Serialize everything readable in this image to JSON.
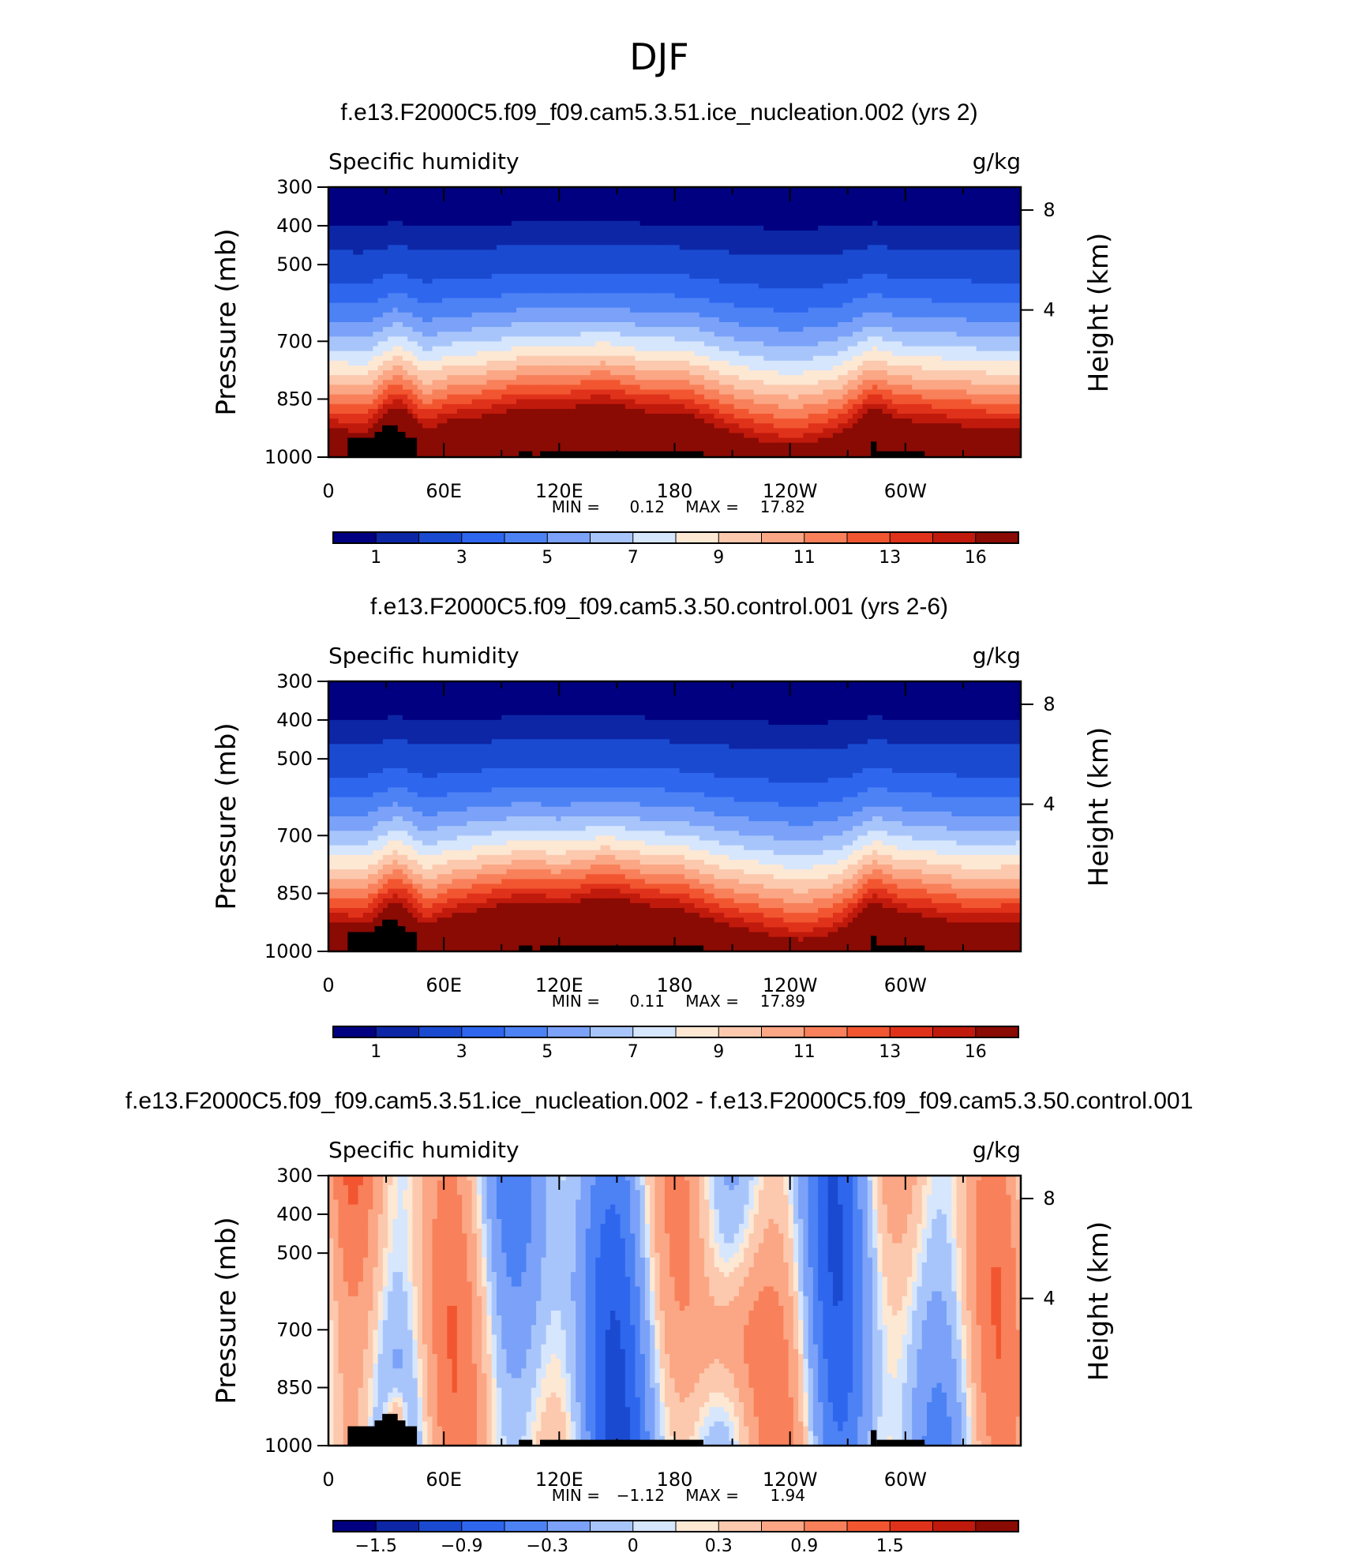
{
  "figure": {
    "title": "DJF",
    "colors": {
      "absolute_scale": [
        "#000080",
        "#0c26a6",
        "#1a4ad0",
        "#2e66ee",
        "#4d82f5",
        "#7ba2f8",
        "#a8c5fb",
        "#d6e6fd",
        "#fde8d4",
        "#fcc9ae",
        "#fba684",
        "#f8805a",
        "#f25630",
        "#e0321a",
        "#c01a0c",
        "#8a0a04"
      ],
      "difference_scale": [
        "#000080",
        "#0c26a6",
        "#1a4ad0",
        "#2e66ee",
        "#4d82f5",
        "#7ba2f8",
        "#a8c5fb",
        "#d6e6fd",
        "#fde8d4",
        "#fcc9ae",
        "#fba684",
        "#f8805a",
        "#f25630",
        "#e0321a",
        "#c01a0c",
        "#8a0a04"
      ],
      "terrain": "#000000"
    }
  },
  "chart_data": [
    {
      "type": "heatmap",
      "title": "f.e13.F2000C5.f09_f09.cam5.3.51.ice_nucleation.002 (yrs 2)",
      "left_string": "Specific humidity",
      "right_string": "g/kg",
      "ylabel": "Pressure (mb)",
      "ylabel_right": "Height (km)",
      "x_ticks": [
        "0",
        "60E",
        "120E",
        "180",
        "120W",
        "60W"
      ],
      "y_ticks": [
        "300",
        "400",
        "500",
        "700",
        "850",
        "1000"
      ],
      "y_ticks_right": [
        "8",
        "4"
      ],
      "stats": {
        "min_label": "MIN =",
        "min": "0.12",
        "max_label": "MAX =",
        "max": "17.82"
      },
      "colorbar": {
        "labels": [
          "1",
          "3",
          "5",
          "7",
          "9",
          "11",
          "13",
          "16"
        ]
      },
      "xlim": [
        0,
        360
      ],
      "ylim": [
        1000,
        300
      ]
    },
    {
      "type": "heatmap",
      "title": "f.e13.F2000C5.f09_f09.cam5.3.50.control.001 (yrs 2-6)",
      "left_string": "Specific humidity",
      "right_string": "g/kg",
      "ylabel": "Pressure (mb)",
      "ylabel_right": "Height (km)",
      "x_ticks": [
        "0",
        "60E",
        "120E",
        "180",
        "120W",
        "60W"
      ],
      "y_ticks": [
        "300",
        "400",
        "500",
        "700",
        "850",
        "1000"
      ],
      "y_ticks_right": [
        "8",
        "4"
      ],
      "stats": {
        "min_label": "MIN =",
        "min": "0.11",
        "max_label": "MAX =",
        "max": "17.89"
      },
      "colorbar": {
        "labels": [
          "1",
          "3",
          "5",
          "7",
          "9",
          "11",
          "13",
          "16"
        ]
      },
      "xlim": [
        0,
        360
      ],
      "ylim": [
        1000,
        300
      ]
    },
    {
      "type": "heatmap",
      "title": "f.e13.F2000C5.f09_f09.cam5.3.51.ice_nucleation.002 - f.e13.F2000C5.f09_f09.cam5.3.50.control.001",
      "left_string": "Specific humidity",
      "right_string": "g/kg",
      "ylabel": "Pressure (mb)",
      "ylabel_right": "Height (km)",
      "x_ticks": [
        "0",
        "60E",
        "120E",
        "180",
        "120W",
        "60W"
      ],
      "y_ticks": [
        "300",
        "400",
        "500",
        "700",
        "850",
        "1000"
      ],
      "y_ticks_right": [
        "8",
        "4"
      ],
      "stats": {
        "min_label": "MIN =",
        "min": "−1.12",
        "max_label": "MAX =",
        "max": "1.94"
      },
      "colorbar": {
        "labels": [
          "−1.5",
          "−0.9",
          "−0.3",
          "0",
          "0.3",
          "0.9",
          "1.5"
        ]
      },
      "xlim": [
        0,
        360
      ],
      "ylim": [
        1000,
        300
      ]
    }
  ]
}
